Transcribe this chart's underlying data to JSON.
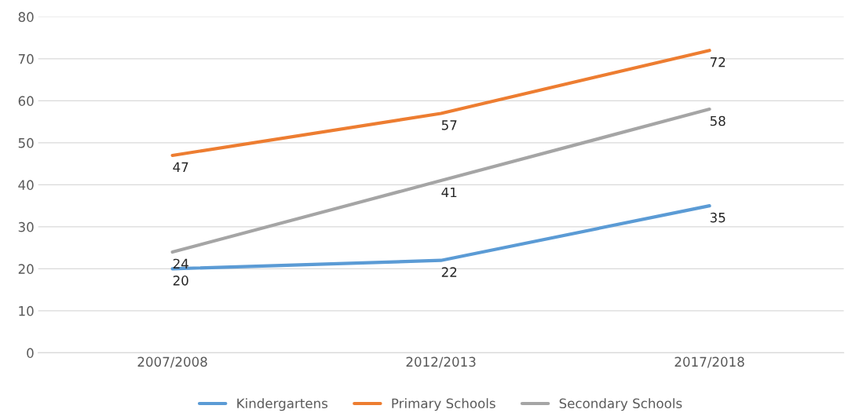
{
  "chart_data": {
    "type": "line",
    "categories": [
      "2007/2008",
      "2012/2013",
      "2017/2018"
    ],
    "series": [
      {
        "name": "Kindergartens",
        "color": "#5b9bd5",
        "values": [
          20,
          22,
          35
        ]
      },
      {
        "name": "Primary Schools",
        "color": "#ed7d31",
        "values": [
          47,
          57,
          72
        ]
      },
      {
        "name": "Secondary Schools",
        "color": "#a5a5a5",
        "values": [
          24,
          41,
          58
        ]
      }
    ],
    "data_labels": true,
    "ylim": [
      0,
      80
    ],
    "yticks": [
      0,
      10,
      20,
      30,
      40,
      50,
      60,
      70,
      80
    ],
    "grid": "y",
    "legend": "bottom",
    "marker": "none",
    "line_style": "solid"
  }
}
